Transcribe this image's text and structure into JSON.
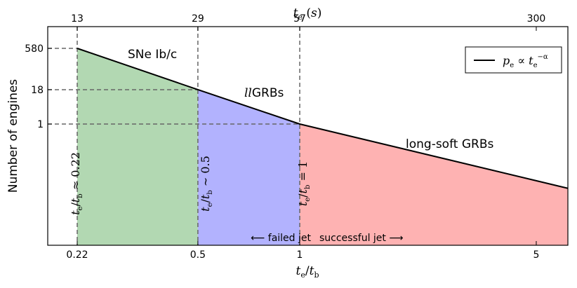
{
  "chart_data": {
    "type": "line",
    "scale": "log",
    "x_bottom": {
      "label": "t_e/t_b",
      "ticks": [
        0.22,
        0.5,
        1,
        5
      ],
      "tick_labels": [
        "0.22",
        "0.5",
        "1",
        "5"
      ],
      "range": [
        0.18,
        6.2
      ]
    },
    "x_top": {
      "label": "t_e (s)",
      "ticks": [
        13,
        29,
        57,
        300
      ],
      "tick_labels": [
        "13",
        "29",
        "57",
        "300"
      ]
    },
    "y": {
      "label": "Number of engines",
      "ticks": [
        580,
        18,
        1
      ],
      "tick_labels": [
        "580",
        "18",
        "1"
      ]
    },
    "series": [
      {
        "name": "p_e ∝ t_e^-α",
        "points": [
          {
            "x": 0.22,
            "y": 580
          },
          {
            "x": 0.5,
            "y": 18
          },
          {
            "x": 1,
            "y": 1
          },
          {
            "x": 6.2,
            "y": 0.0045
          }
        ]
      }
    ],
    "regions": [
      {
        "name": "SNe Ib/c",
        "x_range": [
          0.22,
          0.5
        ],
        "color": "#b2d8b2"
      },
      {
        "name": "llGRBs",
        "x_range": [
          0.5,
          1
        ],
        "color": "#b2b2fe"
      },
      {
        "name": "long-soft GRBs",
        "x_range": [
          1,
          6.2
        ],
        "color": "#feb2b2"
      }
    ],
    "annotations": [
      {
        "text": "t_e/t_b ≈ 0.22",
        "x": 0.22
      },
      {
        "text": "t_e/t_b ∼ 0.5",
        "x": 0.5
      },
      {
        "text": "t_e/t_b = 1",
        "x": 1
      },
      {
        "text": "⟵ failed jet",
        "x": 1
      },
      {
        "text": "successful jet ⟶",
        "x": 1
      }
    ],
    "legend": {
      "position": "top-right",
      "entries": [
        "p_e ∝ t_e^-α"
      ]
    },
    "grid": false
  }
}
